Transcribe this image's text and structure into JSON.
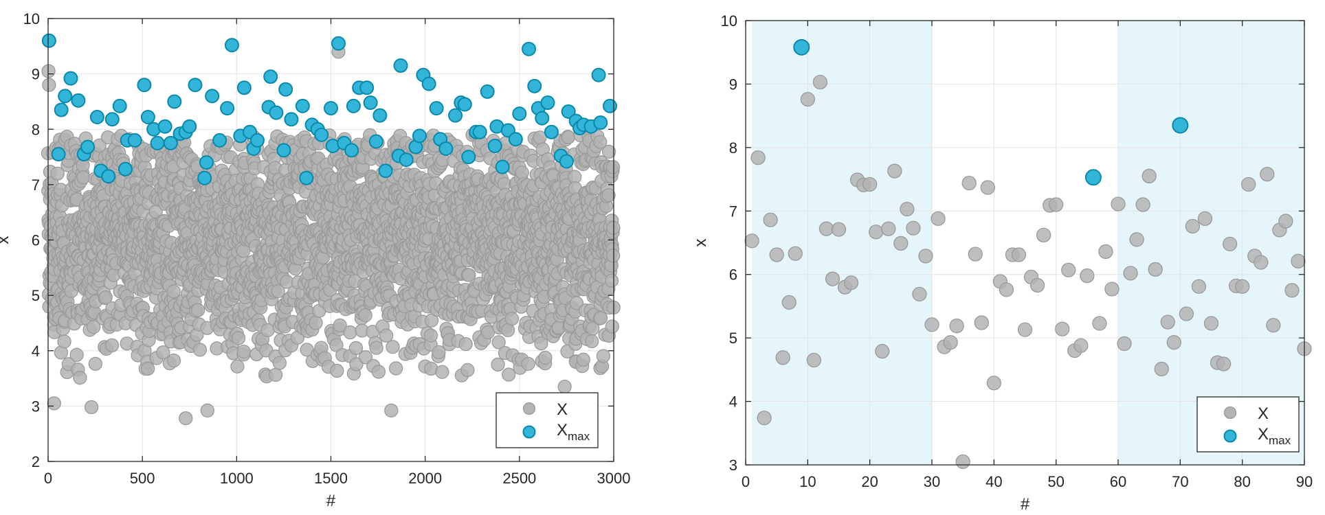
{
  "colors": {
    "x_face": "#b3b3b3",
    "x_edge": "#9a9a9a",
    "xmax_face": "#33b5d9",
    "xmax_edge": "#0a88a8",
    "shade": "#e6f5fa",
    "grid": "#e3e3e3",
    "axis": "#262626"
  },
  "chart_data": [
    {
      "type": "scatter",
      "title": "",
      "xlabel": "#",
      "ylabel": "x",
      "xlim": [
        0,
        3000
      ],
      "ylim": [
        2,
        10
      ],
      "xticks": [
        0,
        500,
        1000,
        1500,
        2000,
        2500,
        3000
      ],
      "yticks": [
        2,
        3,
        4,
        5,
        6,
        7,
        8,
        9,
        10
      ],
      "xtick_labels": [
        "0",
        "500",
        "1000",
        "1500",
        "2000",
        "2500",
        "3000"
      ],
      "ytick_labels": [
        "2",
        "3",
        "4",
        "5",
        "6",
        "7",
        "8",
        "9",
        "10"
      ],
      "grid": true,
      "legend": {
        "placement": "bottom-right",
        "entries": [
          {
            "name": "X",
            "sub": ""
          },
          {
            "name": "X",
            "sub": "max"
          }
        ]
      },
      "series": [
        {
          "name": "X",
          "n_points": 3000,
          "distribution": "approx normal, mean 6, sd 1",
          "notable_points": [
            {
              "x": 2,
              "y": 9.05
            },
            {
              "x": 5,
              "y": 8.8
            },
            {
              "x": 32,
              "y": 3.05
            },
            {
              "x": 230,
              "y": 2.98
            },
            {
              "x": 730,
              "y": 2.78
            },
            {
              "x": 845,
              "y": 2.92
            },
            {
              "x": 1820,
              "y": 2.92
            },
            {
              "x": 2740,
              "y": 3.35
            },
            {
              "x": 1540,
              "y": 9.4
            }
          ]
        },
        {
          "name": "Xmax",
          "points": [
            {
              "x": 5,
              "y": 9.6
            },
            {
              "x": 55,
              "y": 7.55
            },
            {
              "x": 70,
              "y": 8.35
            },
            {
              "x": 90,
              "y": 8.6
            },
            {
              "x": 120,
              "y": 8.92
            },
            {
              "x": 160,
              "y": 8.52
            },
            {
              "x": 190,
              "y": 7.55
            },
            {
              "x": 210,
              "y": 7.68
            },
            {
              "x": 260,
              "y": 8.22
            },
            {
              "x": 280,
              "y": 7.25
            },
            {
              "x": 320,
              "y": 7.15
            },
            {
              "x": 340,
              "y": 8.18
            },
            {
              "x": 380,
              "y": 8.42
            },
            {
              "x": 410,
              "y": 7.28
            },
            {
              "x": 420,
              "y": 7.8
            },
            {
              "x": 460,
              "y": 7.8
            },
            {
              "x": 510,
              "y": 8.8
            },
            {
              "x": 530,
              "y": 8.22
            },
            {
              "x": 560,
              "y": 8.0
            },
            {
              "x": 580,
              "y": 7.75
            },
            {
              "x": 620,
              "y": 8.05
            },
            {
              "x": 650,
              "y": 7.75
            },
            {
              "x": 670,
              "y": 8.5
            },
            {
              "x": 700,
              "y": 7.92
            },
            {
              "x": 730,
              "y": 7.95
            },
            {
              "x": 750,
              "y": 8.05
            },
            {
              "x": 780,
              "y": 8.8
            },
            {
              "x": 830,
              "y": 7.12
            },
            {
              "x": 840,
              "y": 7.4
            },
            {
              "x": 870,
              "y": 8.6
            },
            {
              "x": 910,
              "y": 7.8
            },
            {
              "x": 950,
              "y": 8.38
            },
            {
              "x": 975,
              "y": 9.52
            },
            {
              "x": 1020,
              "y": 7.88
            },
            {
              "x": 1040,
              "y": 8.75
            },
            {
              "x": 1070,
              "y": 7.95
            },
            {
              "x": 1090,
              "y": 7.65
            },
            {
              "x": 1110,
              "y": 7.8
            },
            {
              "x": 1170,
              "y": 8.4
            },
            {
              "x": 1180,
              "y": 8.95
            },
            {
              "x": 1210,
              "y": 8.3
            },
            {
              "x": 1250,
              "y": 7.62
            },
            {
              "x": 1260,
              "y": 8.72
            },
            {
              "x": 1290,
              "y": 8.18
            },
            {
              "x": 1350,
              "y": 8.42
            },
            {
              "x": 1370,
              "y": 7.12
            },
            {
              "x": 1400,
              "y": 8.08
            },
            {
              "x": 1430,
              "y": 8.0
            },
            {
              "x": 1450,
              "y": 7.9
            },
            {
              "x": 1500,
              "y": 8.38
            },
            {
              "x": 1510,
              "y": 7.7
            },
            {
              "x": 1540,
              "y": 9.55
            },
            {
              "x": 1570,
              "y": 7.75
            },
            {
              "x": 1610,
              "y": 7.62
            },
            {
              "x": 1620,
              "y": 8.42
            },
            {
              "x": 1650,
              "y": 8.75
            },
            {
              "x": 1690,
              "y": 8.75
            },
            {
              "x": 1710,
              "y": 8.48
            },
            {
              "x": 1740,
              "y": 7.78
            },
            {
              "x": 1760,
              "y": 8.25
            },
            {
              "x": 1790,
              "y": 7.25
            },
            {
              "x": 1860,
              "y": 7.52
            },
            {
              "x": 1870,
              "y": 9.15
            },
            {
              "x": 1900,
              "y": 7.45
            },
            {
              "x": 1950,
              "y": 7.68
            },
            {
              "x": 1970,
              "y": 7.88
            },
            {
              "x": 1990,
              "y": 8.98
            },
            {
              "x": 2020,
              "y": 8.82
            },
            {
              "x": 2060,
              "y": 8.38
            },
            {
              "x": 2080,
              "y": 7.82
            },
            {
              "x": 2110,
              "y": 7.65
            },
            {
              "x": 2160,
              "y": 8.25
            },
            {
              "x": 2190,
              "y": 8.48
            },
            {
              "x": 2210,
              "y": 8.45
            },
            {
              "x": 2230,
              "y": 7.5
            },
            {
              "x": 2270,
              "y": 7.95
            },
            {
              "x": 2290,
              "y": 7.95
            },
            {
              "x": 2330,
              "y": 8.68
            },
            {
              "x": 2370,
              "y": 7.7
            },
            {
              "x": 2380,
              "y": 8.05
            },
            {
              "x": 2410,
              "y": 7.32
            },
            {
              "x": 2440,
              "y": 7.98
            },
            {
              "x": 2480,
              "y": 7.82
            },
            {
              "x": 2500,
              "y": 8.28
            },
            {
              "x": 2550,
              "y": 9.45
            },
            {
              "x": 2580,
              "y": 8.78
            },
            {
              "x": 2600,
              "y": 8.38
            },
            {
              "x": 2620,
              "y": 8.2
            },
            {
              "x": 2650,
              "y": 8.48
            },
            {
              "x": 2670,
              "y": 7.95
            },
            {
              "x": 2720,
              "y": 7.52
            },
            {
              "x": 2750,
              "y": 7.42
            },
            {
              "x": 2760,
              "y": 8.32
            },
            {
              "x": 2800,
              "y": 8.15
            },
            {
              "x": 2820,
              "y": 8.02
            },
            {
              "x": 2840,
              "y": 8.08
            },
            {
              "x": 2880,
              "y": 8.05
            },
            {
              "x": 2920,
              "y": 8.98
            },
            {
              "x": 2930,
              "y": 8.12
            },
            {
              "x": 2980,
              "y": 8.42
            }
          ]
        }
      ]
    },
    {
      "type": "scatter",
      "title": "",
      "xlabel": "#",
      "ylabel": "x",
      "xlim": [
        0,
        90
      ],
      "ylim": [
        3,
        10
      ],
      "xticks": [
        0,
        10,
        20,
        30,
        40,
        50,
        60,
        70,
        80,
        90
      ],
      "yticks": [
        3,
        4,
        5,
        6,
        7,
        8,
        9,
        10
      ],
      "xtick_labels": [
        "0",
        "10",
        "20",
        "30",
        "40",
        "50",
        "60",
        "70",
        "80",
        "90"
      ],
      "ytick_labels": [
        "3",
        "4",
        "5",
        "6",
        "7",
        "8",
        "9",
        "10"
      ],
      "grid": true,
      "shaded_x_ranges": [
        [
          1,
          30
        ],
        [
          60,
          90
        ]
      ],
      "legend": {
        "placement": "bottom-right",
        "entries": [
          {
            "name": "X",
            "sub": ""
          },
          {
            "name": "X",
            "sub": "max"
          }
        ]
      },
      "series": [
        {
          "name": "X",
          "points": [
            {
              "x": 1,
              "y": 6.53
            },
            {
              "x": 2,
              "y": 7.84
            },
            {
              "x": 3,
              "y": 3.74
            },
            {
              "x": 4,
              "y": 6.86
            },
            {
              "x": 5,
              "y": 6.31
            },
            {
              "x": 6,
              "y": 4.69
            },
            {
              "x": 7,
              "y": 5.56
            },
            {
              "x": 8,
              "y": 6.33
            },
            {
              "x": 10,
              "y": 8.76
            },
            {
              "x": 11,
              "y": 4.65
            },
            {
              "x": 12,
              "y": 9.03
            },
            {
              "x": 13,
              "y": 6.72
            },
            {
              "x": 14,
              "y": 5.93
            },
            {
              "x": 15,
              "y": 6.71
            },
            {
              "x": 16,
              "y": 5.8
            },
            {
              "x": 17,
              "y": 5.87
            },
            {
              "x": 18,
              "y": 7.49
            },
            {
              "x": 19,
              "y": 7.41
            },
            {
              "x": 20,
              "y": 7.42
            },
            {
              "x": 21,
              "y": 6.67
            },
            {
              "x": 22,
              "y": 4.79
            },
            {
              "x": 23,
              "y": 6.72
            },
            {
              "x": 24,
              "y": 7.63
            },
            {
              "x": 25,
              "y": 6.49
            },
            {
              "x": 26,
              "y": 7.03
            },
            {
              "x": 27,
              "y": 6.73
            },
            {
              "x": 28,
              "y": 5.69
            },
            {
              "x": 29,
              "y": 6.29
            },
            {
              "x": 30,
              "y": 5.21
            },
            {
              "x": 31,
              "y": 6.88
            },
            {
              "x": 32,
              "y": 4.86
            },
            {
              "x": 33,
              "y": 4.93
            },
            {
              "x": 34,
              "y": 5.19
            },
            {
              "x": 35,
              "y": 3.05
            },
            {
              "x": 36,
              "y": 7.44
            },
            {
              "x": 37,
              "y": 6.32
            },
            {
              "x": 38,
              "y": 5.24
            },
            {
              "x": 39,
              "y": 7.37
            },
            {
              "x": 40,
              "y": 4.29
            },
            {
              "x": 41,
              "y": 5.89
            },
            {
              "x": 42,
              "y": 5.76
            },
            {
              "x": 43,
              "y": 6.31
            },
            {
              "x": 44,
              "y": 6.31
            },
            {
              "x": 45,
              "y": 5.13
            },
            {
              "x": 46,
              "y": 5.96
            },
            {
              "x": 47,
              "y": 5.83
            },
            {
              "x": 48,
              "y": 6.62
            },
            {
              "x": 49,
              "y": 7.09
            },
            {
              "x": 50,
              "y": 7.1
            },
            {
              "x": 51,
              "y": 5.14
            },
            {
              "x": 52,
              "y": 6.07
            },
            {
              "x": 53,
              "y": 4.8
            },
            {
              "x": 54,
              "y": 4.88
            },
            {
              "x": 55,
              "y": 5.98
            },
            {
              "x": 57,
              "y": 5.23
            },
            {
              "x": 58,
              "y": 6.36
            },
            {
              "x": 59,
              "y": 5.77
            },
            {
              "x": 60,
              "y": 7.11
            },
            {
              "x": 61,
              "y": 4.91
            },
            {
              "x": 62,
              "y": 6.02
            },
            {
              "x": 63,
              "y": 6.55
            },
            {
              "x": 64,
              "y": 7.1
            },
            {
              "x": 65,
              "y": 7.55
            },
            {
              "x": 66,
              "y": 6.08
            },
            {
              "x": 67,
              "y": 4.51
            },
            {
              "x": 68,
              "y": 5.25
            },
            {
              "x": 69,
              "y": 4.93
            },
            {
              "x": 71,
              "y": 5.38
            },
            {
              "x": 72,
              "y": 6.76
            },
            {
              "x": 73,
              "y": 5.81
            },
            {
              "x": 74,
              "y": 6.88
            },
            {
              "x": 75,
              "y": 5.23
            },
            {
              "x": 76,
              "y": 4.61
            },
            {
              "x": 77,
              "y": 4.59
            },
            {
              "x": 78,
              "y": 6.48
            },
            {
              "x": 79,
              "y": 5.82
            },
            {
              "x": 80,
              "y": 5.81
            },
            {
              "x": 81,
              "y": 7.42
            },
            {
              "x": 82,
              "y": 6.29
            },
            {
              "x": 83,
              "y": 6.19
            },
            {
              "x": 84,
              "y": 7.58
            },
            {
              "x": 85,
              "y": 5.2
            },
            {
              "x": 86,
              "y": 6.7
            },
            {
              "x": 87,
              "y": 6.84
            },
            {
              "x": 88,
              "y": 5.75
            },
            {
              "x": 89,
              "y": 6.21
            },
            {
              "x": 90,
              "y": 4.83
            }
          ]
        },
        {
          "name": "Xmax",
          "points": [
            {
              "x": 9,
              "y": 9.58
            },
            {
              "x": 56,
              "y": 7.53
            },
            {
              "x": 70,
              "y": 8.35
            }
          ]
        }
      ]
    }
  ]
}
